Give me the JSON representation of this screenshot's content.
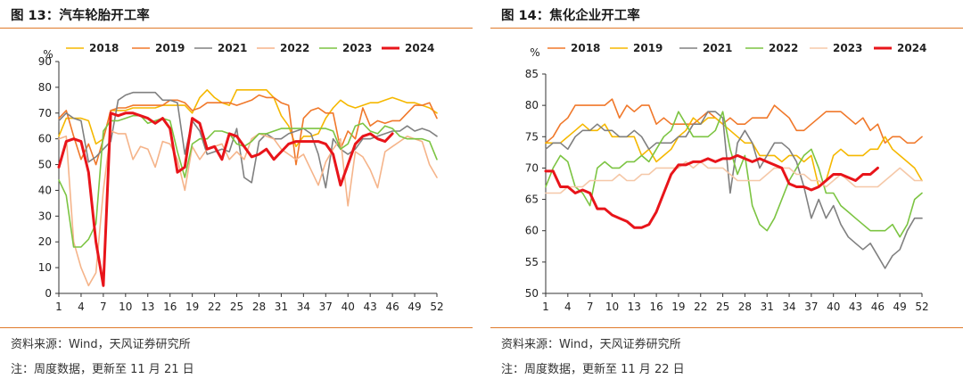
{
  "panels": [
    {
      "title": "图 13：汽车轮胎开工率",
      "source": "资料来源：Wind，天风证券研究所",
      "note": "注：周度数据，更新至 11 月 21 日",
      "chart_data": {
        "type": "line",
        "ylabel": "%",
        "ylim": [
          0,
          90
        ],
        "yticks": [
          0,
          10,
          20,
          30,
          40,
          50,
          60,
          70,
          80,
          90
        ],
        "xlim": [
          1,
          52
        ],
        "xticks": [
          1,
          4,
          7,
          10,
          13,
          16,
          19,
          22,
          25,
          28,
          31,
          34,
          37,
          40,
          43,
          46,
          49,
          52
        ],
        "grid": false,
        "legend_position": "top",
        "series": [
          {
            "name": "2018",
            "color": "#f5b800",
            "width": 1.6,
            "values": [
              61,
              68,
              68,
              68,
              67,
              58,
              60,
              71,
              71,
              71,
              72,
              72,
              72,
              72,
              73,
              73,
              73,
              73,
              70,
              76,
              79,
              76,
              74,
              73,
              79,
              79,
              79,
              79,
              79,
              76,
              69,
              65,
              57,
              61,
              61,
              62,
              68,
              72,
              75,
              73,
              72,
              73,
              74,
              74,
              75,
              76,
              75,
              74,
              74,
              73,
              72,
              70
            ]
          },
          {
            "name": "2019",
            "color": "#f0782a",
            "width": 1.6,
            "values": [
              68,
              71,
              61,
              52,
              58,
              50,
              60,
              71,
              72,
              72,
              73,
              73,
              73,
              73,
              73,
              75,
              75,
              74,
              71,
              72,
              74,
              74,
              74,
              74,
              73,
              74,
              75,
              77,
              76,
              76,
              74,
              73,
              50,
              68,
              71,
              72,
              70,
              70,
              56,
              63,
              60,
              72,
              65,
              67,
              66,
              67,
              67,
              70,
              73,
              73,
              74,
              68
            ]
          },
          {
            "name": "2021",
            "color": "#808080",
            "width": 1.6,
            "values": [
              67,
              70,
              68,
              67,
              51,
              53,
              56,
              59,
              75,
              77,
              78,
              78,
              78,
              78,
              75,
              75,
              74,
              54,
              67,
              63,
              54,
              55,
              56,
              55,
              64,
              45,
              43,
              59,
              62,
              60,
              60,
              62,
              63,
              64,
              62,
              54,
              41,
              60,
              56,
              54,
              56,
              60,
              60,
              61,
              62,
              63,
              63,
              65,
              63,
              64,
              63,
              61
            ]
          },
          {
            "name": "2022",
            "color": "#f5b48a",
            "width": 1.6,
            "values": [
              60,
              61,
              20,
              10,
              3,
              8,
              40,
              63,
              62,
              62,
              52,
              57,
              56,
              49,
              59,
              58,
              52,
              40,
              57,
              52,
              56,
              57,
              58,
              52,
              55,
              52,
              60,
              62,
              61,
              60,
              56,
              54,
              52,
              54,
              48,
              42,
              51,
              56,
              60,
              34,
              55,
              53,
              48,
              41,
              55,
              57,
              59,
              61,
              60,
              59,
              50,
              45
            ]
          },
          {
            "name": "2023",
            "color": "#7cc442",
            "width": 1.6,
            "values": [
              44,
              38,
              18,
              18,
              21,
              27,
              63,
              67,
              67,
              68,
              69,
              69,
              66,
              67,
              68,
              67,
              55,
              45,
              58,
              60,
              60,
              63,
              63,
              62,
              58,
              57,
              59,
              62,
              62,
              63,
              64,
              64,
              64,
              64,
              64,
              64,
              64,
              63,
              56,
              58,
              65,
              66,
              63,
              62,
              65,
              64,
              61,
              60,
              60,
              60,
              59,
              52
            ]
          },
          {
            "name": "2024",
            "color": "#e8141a",
            "width": 3,
            "values": [
              49,
              59,
              60,
              59,
              47,
              20,
              3,
              70,
              69,
              70,
              70,
              69,
              68,
              66,
              68,
              64,
              47,
              49,
              68,
              66,
              56,
              57,
              52,
              62,
              61,
              57,
              53,
              54,
              56,
              52,
              55,
              58,
              59,
              59,
              59,
              59,
              58,
              54,
              42,
              50,
              58,
              61,
              62,
              60,
              59,
              62
            ]
          }
        ]
      }
    },
    {
      "title": "图 14：焦化企业开工率",
      "source": "资料来源：Wind，天风证券研究所",
      "note": "注：周度数据，更新至 11 月 22 日",
      "chart_data": {
        "type": "line",
        "ylabel": "%",
        "ylim": [
          50,
          85
        ],
        "yticks": [
          50,
          55,
          60,
          65,
          70,
          75,
          80,
          85
        ],
        "xlim": [
          1,
          52
        ],
        "xticks": [
          1,
          4,
          7,
          10,
          13,
          16,
          19,
          22,
          25,
          28,
          31,
          34,
          37,
          40,
          43,
          46,
          49,
          52
        ],
        "grid": false,
        "legend_position": "top",
        "series": [
          {
            "name": "2018",
            "color": "#f0782a",
            "width": 1.6,
            "values": [
              74,
              75,
              77,
              78,
              80,
              80,
              80,
              80,
              80,
              81,
              78,
              80,
              79,
              80,
              80,
              77,
              78,
              77,
              77,
              77,
              77,
              78,
              79,
              78,
              77,
              78,
              77,
              77,
              78,
              78,
              78,
              80,
              79,
              78,
              76,
              76,
              77,
              78,
              79,
              79,
              79,
              78,
              77,
              78,
              76,
              77,
              74,
              75,
              75,
              74,
              74,
              75
            ]
          },
          {
            "name": "2019",
            "color": "#f5b800",
            "width": 1.6,
            "values": [
              74,
              74,
              74,
              75,
              76,
              77,
              76,
              76,
              77,
              75,
              75,
              75,
              75,
              72,
              73,
              71,
              72,
              73,
              75,
              76,
              78,
              77,
              78,
              78,
              77,
              76,
              75,
              74,
              74,
              72,
              72,
              72,
              71,
              72,
              72,
              71,
              72,
              67,
              68,
              72,
              73,
              72,
              72,
              72,
              73,
              73,
              75,
              73,
              72,
              71,
              70,
              68
            ]
          },
          {
            "name": "2021",
            "color": "#808080",
            "width": 1.6,
            "values": [
              73,
              74,
              74,
              73,
              75,
              76,
              76,
              77,
              76,
              76,
              75,
              75,
              76,
              75,
              73,
              74,
              74,
              74,
              75,
              75,
              77,
              77,
              79,
              79,
              78,
              66,
              74,
              76,
              74,
              70,
              72,
              74,
              74,
              73,
              71,
              67,
              62,
              65,
              62,
              64,
              61,
              59,
              58,
              57,
              58,
              56,
              54,
              56,
              57,
              60,
              62,
              62
            ]
          },
          {
            "name": "2022",
            "color": "#7cc442",
            "width": 1.6,
            "values": [
              67,
              70,
              72,
              71,
              67,
              66,
              64,
              70,
              71,
              70,
              70,
              71,
              71,
              72,
              71,
              73,
              75,
              76,
              79,
              77,
              75,
              75,
              75,
              76,
              79,
              73,
              69,
              72,
              64,
              61,
              60,
              62,
              65,
              68,
              70,
              72,
              73,
              70,
              66,
              66,
              64,
              63,
              62,
              61,
              60,
              60,
              60,
              61,
              59,
              61,
              65,
              66
            ]
          },
          {
            "name": "2023",
            "color": "#f5c8a8",
            "width": 1.6,
            "values": [
              66,
              66,
              66,
              67,
              67,
              67,
              68,
              68,
              68,
              68,
              69,
              68,
              68,
              69,
              69,
              70,
              70,
              70,
              70,
              71,
              70,
              71,
              70,
              70,
              70,
              69,
              68,
              68,
              68,
              68,
              69,
              70,
              70,
              70,
              69,
              69,
              68,
              68,
              67,
              68,
              69,
              68,
              67,
              67,
              67,
              67,
              68,
              69,
              70,
              69,
              68,
              68
            ]
          },
          {
            "name": "2024",
            "color": "#e8141a",
            "width": 3,
            "values": [
              69.5,
              69.5,
              67,
              67,
              66,
              66.5,
              66,
              63.5,
              63.5,
              62.5,
              62,
              61.5,
              60.5,
              60.5,
              61,
              63,
              66,
              69,
              70.5,
              70.5,
              71,
              71,
              71.5,
              71,
              71.5,
              71.5,
              72,
              71.5,
              71,
              71.5,
              71,
              70.5,
              70,
              67.5,
              67,
              67,
              66.5,
              67,
              68,
              69,
              69,
              68.5,
              68,
              69,
              69,
              70
            ]
          }
        ]
      }
    }
  ]
}
